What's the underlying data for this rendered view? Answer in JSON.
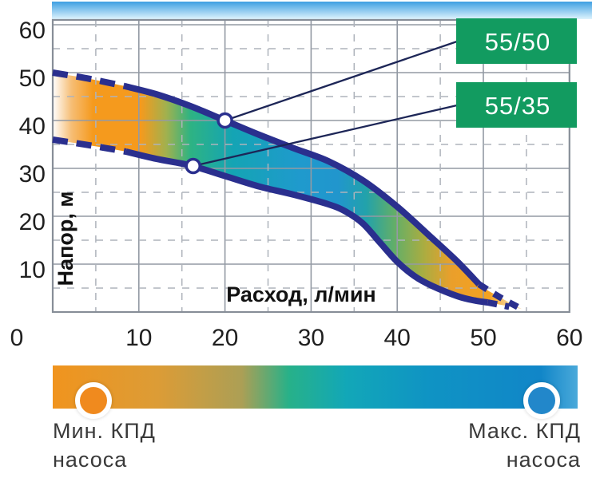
{
  "chart_data": {
    "type": "area",
    "title": "",
    "xlabel": "Расход, л/мин",
    "ylabel": "Напор, м",
    "xlim": [
      0,
      60
    ],
    "ylim": [
      0,
      60
    ],
    "x_major_ticks": [
      0,
      10,
      20,
      30,
      40,
      50,
      60
    ],
    "y_major_ticks": [
      10,
      20,
      30,
      40,
      50,
      60
    ],
    "x_minor_ticks": [
      5,
      15,
      25,
      35,
      45,
      55
    ],
    "y_minor_ticks": [
      5,
      15,
      25,
      35,
      45,
      55
    ],
    "grid": true,
    "series": [
      {
        "name": "55/50",
        "marker_point": [
          20,
          40
        ],
        "dashed_head": [
          [
            0,
            50
          ],
          [
            4,
            48.8
          ],
          [
            8.3,
            47.2
          ]
        ],
        "solid": [
          [
            8.3,
            47.2
          ],
          [
            12,
            45.5
          ],
          [
            16,
            43
          ],
          [
            20,
            40
          ],
          [
            24,
            37
          ],
          [
            28,
            34.2
          ],
          [
            32,
            31.5
          ],
          [
            36,
            27.5
          ],
          [
            40,
            22
          ],
          [
            44,
            15.5
          ],
          [
            47,
            10.5
          ],
          [
            49.5,
            5.8
          ]
        ],
        "dashed_tail": [
          [
            49.5,
            5.8
          ],
          [
            52,
            3
          ],
          [
            54.8,
            0.3
          ]
        ]
      },
      {
        "name": "55/35",
        "marker_point": [
          16.3,
          30.5
        ],
        "dashed_head": [
          [
            0,
            36
          ],
          [
            4,
            34.9
          ],
          [
            8.5,
            33.5
          ]
        ],
        "solid": [
          [
            8.5,
            33.5
          ],
          [
            12,
            32
          ],
          [
            16,
            30.6
          ],
          [
            20,
            28.4
          ],
          [
            24,
            26.2
          ],
          [
            28,
            24.5
          ],
          [
            32,
            22.5
          ],
          [
            34,
            21
          ],
          [
            36,
            18.5
          ],
          [
            38,
            14.5
          ],
          [
            40,
            10.5
          ],
          [
            42,
            7.5
          ],
          [
            44,
            5.5
          ],
          [
            47,
            3.3
          ],
          [
            49,
            2.4
          ],
          [
            50.5,
            2
          ]
        ],
        "dashed_tail": [
          [
            50.5,
            2
          ],
          [
            53,
            1.1
          ]
        ]
      }
    ],
    "band": {
      "upper": [
        [
          0,
          50
        ],
        [
          4,
          48.8
        ],
        [
          8.3,
          47.2
        ],
        [
          12,
          45.5
        ],
        [
          16,
          43
        ],
        [
          20,
          40
        ],
        [
          24,
          37
        ],
        [
          28,
          34.2
        ],
        [
          32,
          31.5
        ],
        [
          36,
          27.5
        ],
        [
          40,
          22
        ],
        [
          44,
          15.5
        ],
        [
          47,
          10.5
        ],
        [
          49.5,
          5.8
        ],
        [
          52,
          3
        ],
        [
          54.5,
          0.6
        ]
      ],
      "lower": [
        [
          0,
          36
        ],
        [
          4,
          34.9
        ],
        [
          8.5,
          33.5
        ],
        [
          12,
          32
        ],
        [
          16,
          30.6
        ],
        [
          20,
          28.4
        ],
        [
          24,
          26.2
        ],
        [
          28,
          24.5
        ],
        [
          32,
          22.5
        ],
        [
          34,
          21
        ],
        [
          36,
          18.5
        ],
        [
          38,
          14.5
        ],
        [
          40,
          10.5
        ],
        [
          42,
          7.5
        ],
        [
          44,
          5.5
        ],
        [
          47,
          3.3
        ],
        [
          49,
          2.4
        ],
        [
          50.5,
          2
        ],
        [
          53,
          1.2
        ]
      ]
    },
    "band_gradient": [
      [
        0,
        "#ffffff"
      ],
      [
        0.04,
        "#f6bd74"
      ],
      [
        0.085,
        "#f59a1d"
      ],
      [
        0.185,
        "#f59a1d"
      ],
      [
        0.24,
        "#a0b14f"
      ],
      [
        0.29,
        "#2eb383"
      ],
      [
        0.38,
        "#14a4b4"
      ],
      [
        0.52,
        "#1f9acd"
      ],
      [
        0.6,
        "#2196cd"
      ],
      [
        0.66,
        "#22a2ab"
      ],
      [
        0.72,
        "#62ae68"
      ],
      [
        0.78,
        "#a8ad42"
      ],
      [
        0.84,
        "#ea9f2b"
      ],
      [
        0.92,
        "#f5a21f"
      ],
      [
        0.965,
        "#f7d6a0"
      ],
      [
        1,
        "#f9e4c2"
      ]
    ],
    "legend_gradient": [
      [
        0,
        "#f0941e"
      ],
      [
        0.2,
        "#dc9c36"
      ],
      [
        0.36,
        "#ac9f55"
      ],
      [
        0.45,
        "#27b189"
      ],
      [
        0.56,
        "#12a7b8"
      ],
      [
        0.72,
        "#0f93c4"
      ],
      [
        0.93,
        "#1186c8"
      ],
      [
        1,
        "#4aa9da"
      ]
    ]
  },
  "labels": {
    "series_box_1": "55/50",
    "series_box_2": "55/35",
    "legend_min_line1": "Мин. КПД",
    "legend_min_line2": "насоса",
    "legend_max_line1": "Макс. КПД",
    "legend_max_line2": "насоса"
  },
  "colors": {
    "curve": "#2a2f8e",
    "callout_line": "#1d2657",
    "label_box": "#129b60",
    "label_box_text": "#ffffff",
    "grid_major": "#939aa4",
    "grid_minor": "#aeb3bb",
    "frame": "#878e98",
    "tick_text": "#1f1f1f",
    "sky_top": "#3e9fe2",
    "sky_bottom": "#def3fd",
    "legend_min_circle": "#f08a1e",
    "legend_max_circle": "#2287ca",
    "legend_text": "#3a3a3a"
  }
}
